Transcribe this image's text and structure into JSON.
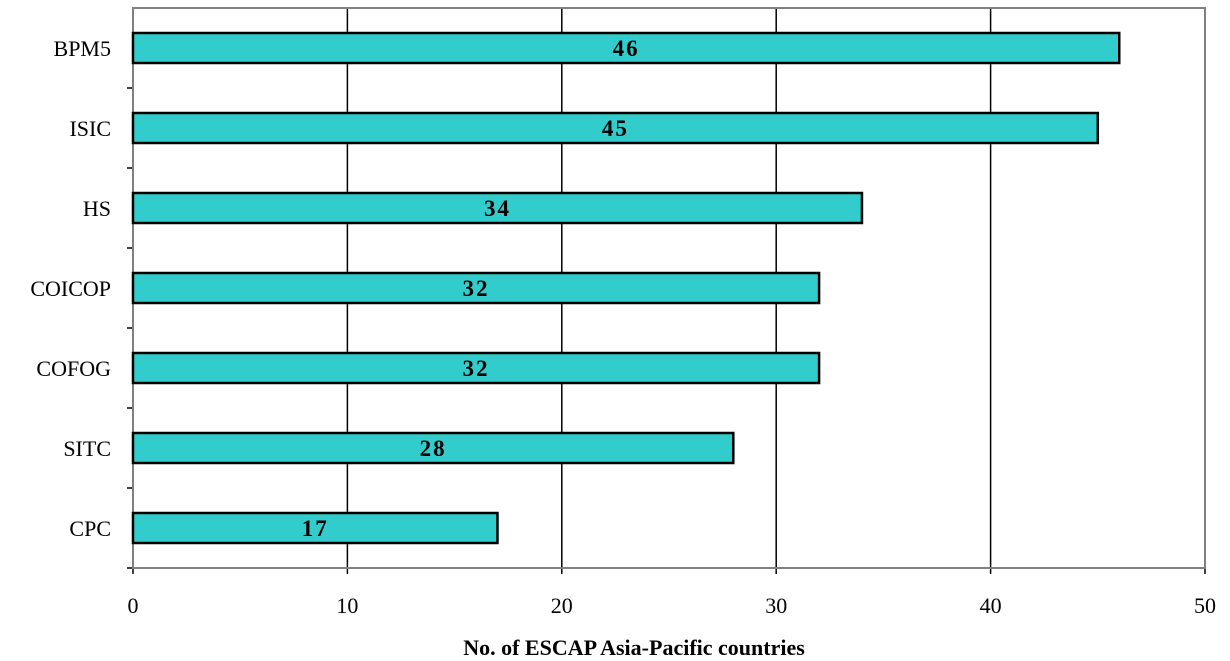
{
  "chart_data": {
    "type": "bar",
    "orientation": "horizontal",
    "categories": [
      "BPM5",
      "ISIC",
      "HS",
      "COICOP",
      "COFOG",
      "SITC",
      "CPC"
    ],
    "values": [
      46,
      45,
      34,
      32,
      32,
      28,
      17
    ],
    "data_labels": [
      "46",
      "45",
      "34",
      "32",
      "32",
      "28",
      "17"
    ],
    "title": "",
    "xlabel": "No. of ESCAP Asia-Pacific countries",
    "ylabel": "",
    "xlim": [
      0,
      50
    ],
    "xticks": [
      "0",
      "10",
      "20",
      "30",
      "40",
      "50"
    ],
    "grid": "vertical",
    "legend": "none",
    "colors": {
      "bar_fill": "#33CCCC",
      "bar_stroke": "#000000",
      "grid": "#000000",
      "frame": "#808080"
    }
  }
}
